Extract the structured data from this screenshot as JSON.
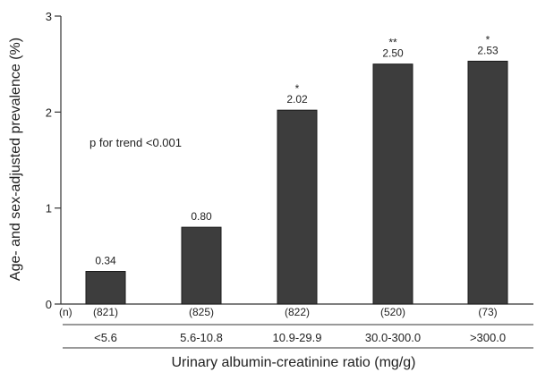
{
  "chart_data": {
    "type": "bar",
    "ylabel": "Age- and sex-adjusted prevalence (%)",
    "xlabel": "Urinary albumin-creatinine ratio (mg/g)",
    "categories": [
      "<5.6",
      "5.6-10.8",
      "10.9-29.9",
      "30.0-300.0",
      ">300.0"
    ],
    "values": [
      0.34,
      0.8,
      2.02,
      2.5,
      2.53
    ],
    "value_labels": [
      "0.34",
      "0.80",
      "2.02",
      "2.50",
      "2.53"
    ],
    "significance": [
      "",
      "",
      "*",
      "**",
      "*"
    ],
    "n_label": "(n)",
    "n_values": [
      "(821)",
      "(825)",
      "(822)",
      "(520)",
      "(73)"
    ],
    "annotation": "p for trend <0.001",
    "ylim": [
      0,
      3
    ],
    "yticks": [
      "0",
      "1",
      "2",
      "3"
    ],
    "bar_color": "#3d3d3d",
    "grid": false,
    "legend": "none"
  }
}
